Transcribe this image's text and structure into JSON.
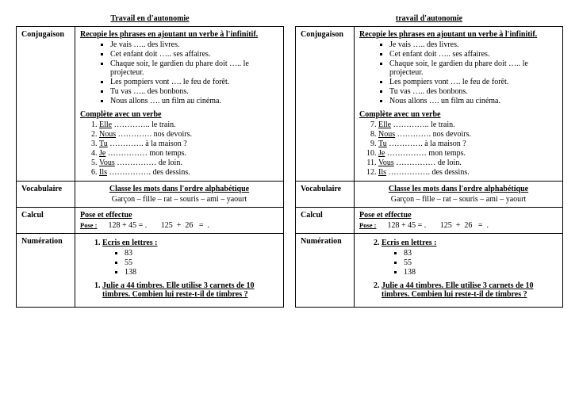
{
  "sheets": [
    {
      "title": "Travail en d'autonomie",
      "ol_start_a": 1,
      "num_start": 1,
      "rows": {
        "conjugaison_label": "Conjugaison",
        "conj_hdr1": "Recopie les phrases en ajoutant un verbe à l'infinitif.",
        "conj_bullets": [
          "Je vais ….. des livres.",
          "Cet enfant doit ….. ses affaires.",
          "Chaque soir, le gardien du phare doit ….. le projecteur.",
          "Les pompiers vont …. le feu de forêt.",
          "Tu vas ….. des bonbons.",
          "Nous allons …. un film au cinéma."
        ],
        "conj_hdr2": "Complète avec un verbe",
        "conj_list": [
          {
            "u": "Elle",
            "rest": " ………….. le train."
          },
          {
            "u": "Nous",
            "rest": " …………. nos devoirs."
          },
          {
            "u": "Tu",
            "rest": " …………. à la maison ?"
          },
          {
            "u": "Je",
            "rest": " …………… mon temps."
          },
          {
            "u": "Vous",
            "rest": " …………… de loin."
          },
          {
            "u": "Ils",
            "rest": " ……………. des dessins."
          }
        ],
        "vocab_label": "Vocabulaire",
        "vocab_hdr": "Classe les mots dans l'ordre alphabétique",
        "vocab_line": "Garçon – fille – rat – souris – ami – yaourt",
        "calcul_label": "Calcul",
        "calcul_hdr": "Pose et effectue",
        "calcul_pose": "Pose :",
        "calcul_expr": "128 + 45 = .       125  +  26   =  .",
        "numer_label": "Numération",
        "numer_q1": "Ecris  en lettres :",
        "numer_nums": [
          "83",
          "55",
          "138"
        ],
        "numer_q2": "Julie a 44 timbres. Elle utilise 3 carnets de 10 timbres. Combien lui reste-t-il de timbres ?"
      }
    },
    {
      "title": "travail d'autonomie",
      "ol_start_a": 7,
      "num_start": 2,
      "rows": {
        "conjugaison_label": "Conjugaison",
        "conj_hdr1": "Recopie les phrases en ajoutant un verbe à l'infinitif.",
        "conj_bullets": [
          "Je vais ….. des livres.",
          "Cet enfant doit ….. ses affaires.",
          "Chaque soir, le gardien du phare doit ….. le projecteur.",
          "Les pompiers vont …. le feu de forêt.",
          "Tu vas ….. des bonbons.",
          "Nous allons …. un film au cinéma."
        ],
        "conj_hdr2": "Complète avec un verbe",
        "conj_list": [
          {
            "u": "Elle",
            "rest": " ………….. le train."
          },
          {
            "u": "Nous",
            "rest": " …………. nos devoirs."
          },
          {
            "u": "Tu",
            "rest": " …………. à la maison ?"
          },
          {
            "u": "Je",
            "rest": " …………… mon temps."
          },
          {
            "u": "Vous",
            "rest": " …………… de loin."
          },
          {
            "u": "Ils",
            "rest": " ……………. des dessins."
          }
        ],
        "vocab_label": "Vocabulaire",
        "vocab_hdr": "Classe les mots dans l'ordre alphabétique",
        "vocab_line": "Garçon – fille – rat – souris – ami – yaourt",
        "calcul_label": "Calcul",
        "calcul_hdr": "Pose et effectue",
        "calcul_pose": "Pose :",
        "calcul_expr": "128 + 45 = .       125  +  26   =  .",
        "numer_label": "Numération",
        "numer_q1": "Ecris  en lettres :",
        "numer_nums": [
          "83",
          "55",
          "138"
        ],
        "numer_q2": "Julie a 44 timbres. Elle utilise 3 carnets de 10 timbres. Combien lui reste-t-il de timbres ?"
      }
    }
  ]
}
